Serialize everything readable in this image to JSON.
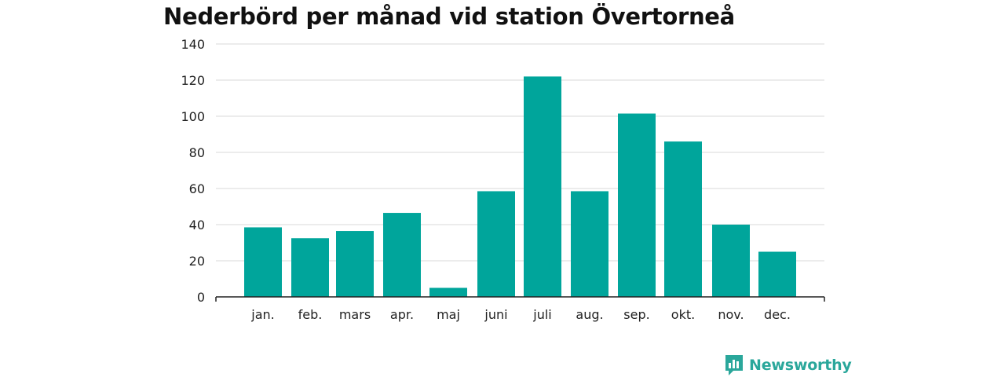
{
  "chart_data": {
    "type": "bar",
    "title": "Nederbörd per månad vid station Övertorneå",
    "categories": [
      "jan.",
      "feb.",
      "mars",
      "apr.",
      "maj",
      "juni",
      "juli",
      "aug.",
      "sep.",
      "okt.",
      "nov.",
      "dec."
    ],
    "values": [
      38.5,
      32.5,
      36.5,
      46.5,
      5,
      58.5,
      122,
      58.5,
      101.5,
      86,
      40,
      25
    ],
    "ylim": [
      0,
      140
    ],
    "yticks": [
      0,
      20,
      40,
      60,
      80,
      100,
      120,
      140
    ],
    "grid": true,
    "bar_color": "#00a59b"
  },
  "brand": {
    "name": "Newsworthy",
    "icon": "newsworthy-logo-icon",
    "color": "#2aa79b"
  }
}
